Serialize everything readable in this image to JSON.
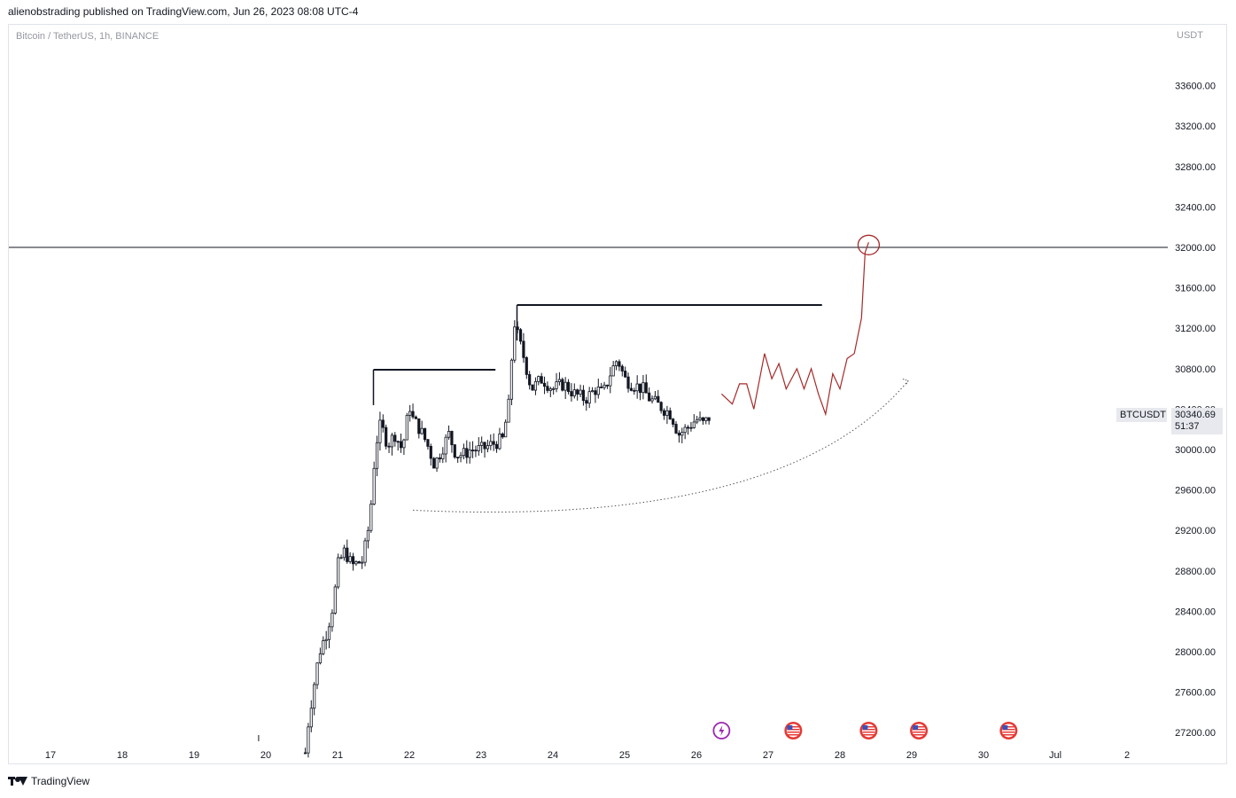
{
  "header": {
    "publisher_line": "alienobstrading published on TradingView.com, Jun 26, 2023 08:08 UTC-4"
  },
  "symbol_line": "Bitcoin / TetherUS, 1h, BINANCE",
  "currency": "USDT",
  "price_tag": {
    "symbol": "BTCUSDT",
    "price": "30340.69",
    "countdown": "51:37"
  },
  "footer": {
    "brand": "TradingView"
  },
  "colors": {
    "candle": "#131722",
    "annotation": "#a52a2a",
    "accent_purple": "#9c27b0",
    "flag_red": "#e53935"
  },
  "chart_data": {
    "type": "candlestick",
    "title": "Bitcoin / TetherUS, 1h, BINANCE",
    "ylim": [
      27000,
      33800
    ],
    "y_ticks": [
      "33600.00",
      "33200.00",
      "32800.00",
      "32400.00",
      "32000.00",
      "31600.00",
      "31200.00",
      "30800.00",
      "30400.00",
      "30000.00",
      "29600.00",
      "29200.00",
      "28800.00",
      "28400.00",
      "28000.00",
      "27600.00",
      "27200.00"
    ],
    "x_ticks": [
      "17",
      "18",
      "19",
      "20",
      "21",
      "22",
      "23",
      "24",
      "25",
      "26",
      "27",
      "28",
      "29",
      "30",
      "Jul",
      "2"
    ],
    "grid": false,
    "price_path": [
      [
        20.55,
        27000
      ],
      [
        20.6,
        27350
      ],
      [
        20.7,
        27800
      ],
      [
        20.75,
        28000
      ],
      [
        20.85,
        28200
      ],
      [
        20.95,
        28500
      ],
      [
        21.0,
        28850
      ],
      [
        21.1,
        29000
      ],
      [
        21.2,
        28850
      ],
      [
        21.35,
        28900
      ],
      [
        21.45,
        29300
      ],
      [
        21.5,
        29800
      ],
      [
        21.55,
        30100
      ],
      [
        21.6,
        30250
      ],
      [
        21.7,
        30050
      ],
      [
        21.8,
        30150
      ],
      [
        21.9,
        30000
      ],
      [
        21.95,
        30200
      ],
      [
        22.0,
        30450
      ],
      [
        22.05,
        30300
      ],
      [
        22.15,
        30200
      ],
      [
        22.25,
        30050
      ],
      [
        22.35,
        29850
      ],
      [
        22.45,
        30000
      ],
      [
        22.55,
        30150
      ],
      [
        22.65,
        29950
      ],
      [
        22.75,
        29950
      ],
      [
        22.85,
        30000
      ],
      [
        23.0,
        30000
      ],
      [
        23.15,
        30050
      ],
      [
        23.3,
        30100
      ],
      [
        23.4,
        30500
      ],
      [
        23.45,
        31300
      ],
      [
        23.5,
        31150
      ],
      [
        23.6,
        30900
      ],
      [
        23.7,
        30600
      ],
      [
        23.85,
        30700
      ],
      [
        24.0,
        30600
      ],
      [
        24.15,
        30650
      ],
      [
        24.3,
        30550
      ],
      [
        24.45,
        30500
      ],
      [
        24.6,
        30600
      ],
      [
        24.7,
        30550
      ],
      [
        24.8,
        30750
      ],
      [
        24.9,
        30900
      ],
      [
        25.0,
        30700
      ],
      [
        25.1,
        30650
      ],
      [
        25.25,
        30600
      ],
      [
        25.35,
        30500
      ],
      [
        25.45,
        30450
      ],
      [
        25.55,
        30400
      ],
      [
        25.65,
        30350
      ],
      [
        25.75,
        30150
      ],
      [
        25.85,
        30200
      ],
      [
        26.0,
        30300
      ],
      [
        26.1,
        30250
      ],
      [
        26.2,
        30340
      ]
    ],
    "annotations": {
      "horizontal_line": 32000,
      "level_lines": [
        {
          "from": 21.5,
          "to": 23.2,
          "price": 30790
        },
        {
          "from": 23.5,
          "to": 27.75,
          "price": 31430
        }
      ],
      "projection": [
        [
          26.35,
          30550
        ],
        [
          26.5,
          30450
        ],
        [
          26.6,
          30650
        ],
        [
          26.7,
          30650
        ],
        [
          26.8,
          30400
        ],
        [
          26.95,
          30950
        ],
        [
          27.05,
          30700
        ],
        [
          27.15,
          30850
        ],
        [
          27.25,
          30600
        ],
        [
          27.4,
          30800
        ],
        [
          27.5,
          30600
        ],
        [
          27.6,
          30800
        ],
        [
          27.7,
          30550
        ],
        [
          27.8,
          30350
        ],
        [
          27.9,
          30750
        ],
        [
          28.0,
          30600
        ],
        [
          28.1,
          30900
        ],
        [
          28.2,
          30950
        ],
        [
          28.3,
          31300
        ],
        [
          28.35,
          31950
        ],
        [
          28.4,
          32050
        ]
      ],
      "target_circle": 32050,
      "curve_start": [
        22.05,
        29400
      ],
      "curve_end": [
        28.95,
        30680
      ]
    },
    "events": [
      {
        "x": 26.35,
        "icon": "lightning"
      },
      {
        "x": 27.35,
        "icon": "us-flag"
      },
      {
        "x": 28.4,
        "icon": "us-flag"
      },
      {
        "x": 29.1,
        "icon": "us-flag"
      },
      {
        "x": 30.35,
        "icon": "us-flag"
      }
    ],
    "current_price": 30340.69
  }
}
